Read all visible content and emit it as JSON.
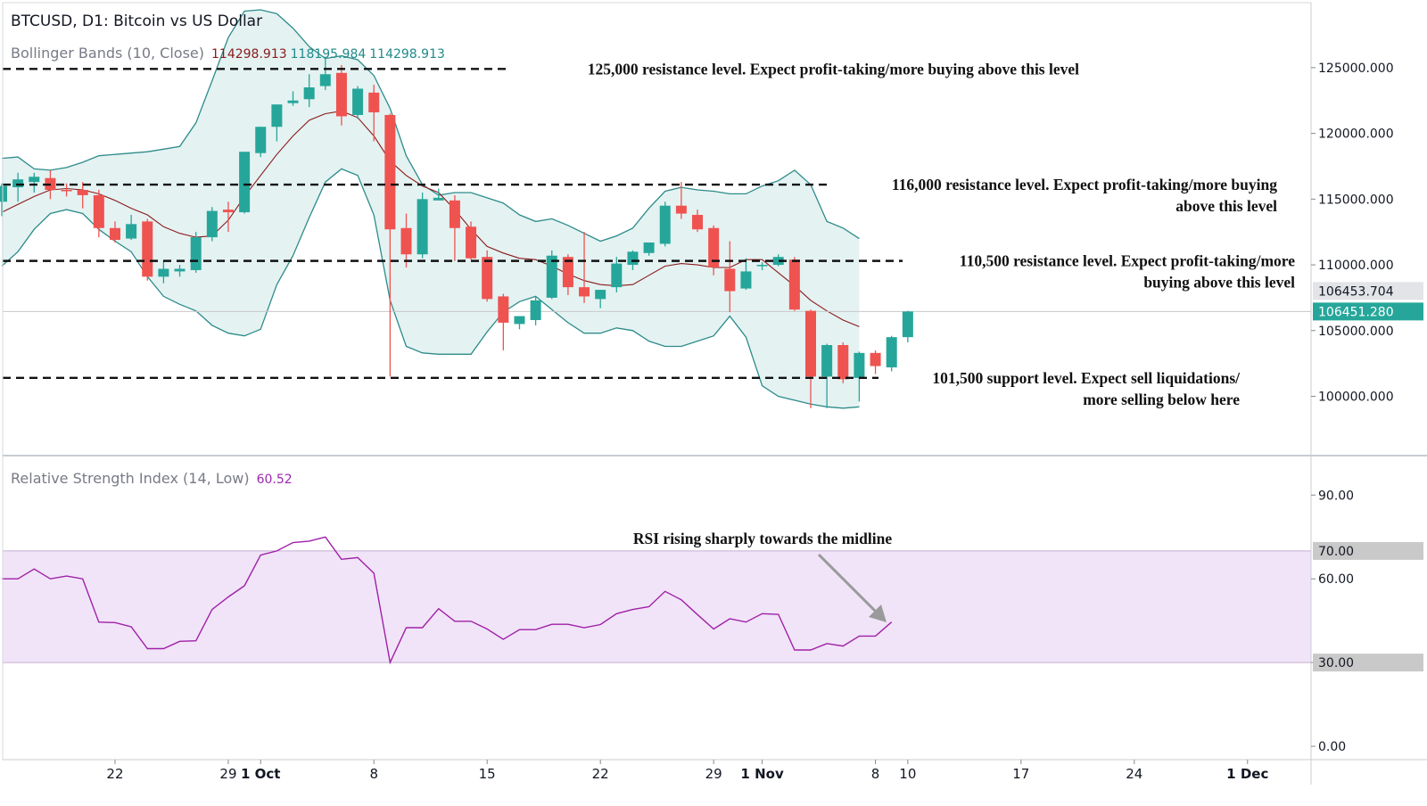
{
  "header": {
    "title": "BTCUSD, D1: Bitcoin vs US Dollar",
    "bb_label": "Bollinger Bands (10, Close)",
    "bb_values": [
      "114298.913",
      "118195.984",
      "114298.913"
    ],
    "rsi_label": "Relative Strength Index (14, Low)",
    "rsi_value": "60.52"
  },
  "chart_data": [
    {
      "type": "candlestick",
      "symbol": "BTCUSD",
      "timeframe": "D1",
      "ylim": [
        95000,
        130000
      ],
      "y_ticks": [
        "100000.000",
        "105000.000",
        "110000.000",
        "115000.000",
        "120000.000",
        "125000.000"
      ],
      "price_labels": [
        {
          "value": 106453.704,
          "text": "106453.704",
          "style": "gray"
        },
        {
          "value": 106451.28,
          "text": "106451.280",
          "style": "teal"
        }
      ],
      "x_ticks": [
        {
          "day": 7,
          "label": "22"
        },
        {
          "day": 14,
          "label": "29"
        },
        {
          "day": 16,
          "label": "1 Oct",
          "bold": true
        },
        {
          "day": 23,
          "label": "8"
        },
        {
          "day": 30,
          "label": "15"
        },
        {
          "day": 37,
          "label": "22"
        },
        {
          "day": 44,
          "label": "29"
        },
        {
          "day": 47,
          "label": "1 Nov",
          "bold": true
        },
        {
          "day": 54,
          "label": "8"
        },
        {
          "day": 56,
          "label": "10"
        },
        {
          "day": 63,
          "label": "17"
        },
        {
          "day": 70,
          "label": "24"
        },
        {
          "day": 77,
          "label": "1 Dec",
          "bold": true
        }
      ],
      "x_range_days": [
        0,
        80.5
      ],
      "candles": [
        {
          "o": 114800,
          "h": 116200,
          "l": 113700,
          "c": 116000
        },
        {
          "o": 115900,
          "h": 117000,
          "l": 114800,
          "c": 116500
        },
        {
          "o": 116300,
          "h": 117000,
          "l": 115500,
          "c": 116700
        },
        {
          "o": 116600,
          "h": 117200,
          "l": 115000,
          "c": 115700
        },
        {
          "o": 115700,
          "h": 116200,
          "l": 115200,
          "c": 115600
        },
        {
          "o": 115700,
          "h": 116300,
          "l": 114300,
          "c": 115300
        },
        {
          "o": 115300,
          "h": 115700,
          "l": 112100,
          "c": 112800
        },
        {
          "o": 112800,
          "h": 113300,
          "l": 111700,
          "c": 111900
        },
        {
          "o": 112000,
          "h": 113800,
          "l": 111900,
          "c": 113100
        },
        {
          "o": 113300,
          "h": 113500,
          "l": 108800,
          "c": 109100
        },
        {
          "o": 109100,
          "h": 110300,
          "l": 108600,
          "c": 109700
        },
        {
          "o": 109500,
          "h": 110000,
          "l": 109100,
          "c": 109700
        },
        {
          "o": 109600,
          "h": 112500,
          "l": 109400,
          "c": 112100
        },
        {
          "o": 112100,
          "h": 114400,
          "l": 111800,
          "c": 114100
        },
        {
          "o": 114200,
          "h": 114800,
          "l": 112500,
          "c": 114000
        },
        {
          "o": 114000,
          "h": 118600,
          "l": 113900,
          "c": 118600
        },
        {
          "o": 118500,
          "h": 120500,
          "l": 118200,
          "c": 120500
        },
        {
          "o": 120500,
          "h": 122200,
          "l": 119400,
          "c": 122200
        },
        {
          "o": 122300,
          "h": 123200,
          "l": 122100,
          "c": 122500
        },
        {
          "o": 122600,
          "h": 124500,
          "l": 122000,
          "c": 123500
        },
        {
          "o": 123600,
          "h": 125800,
          "l": 123300,
          "c": 124500
        },
        {
          "o": 124600,
          "h": 125200,
          "l": 120600,
          "c": 121300
        },
        {
          "o": 121400,
          "h": 123600,
          "l": 121100,
          "c": 123400
        },
        {
          "o": 123100,
          "h": 123700,
          "l": 119400,
          "c": 121600
        },
        {
          "o": 121400,
          "h": 121500,
          "l": 101500,
          "c": 112700
        },
        {
          "o": 112800,
          "h": 113900,
          "l": 109800,
          "c": 110800
        },
        {
          "o": 110800,
          "h": 115500,
          "l": 110500,
          "c": 115000
        },
        {
          "o": 114900,
          "h": 115800,
          "l": 114900,
          "c": 115100
        },
        {
          "o": 114900,
          "h": 115300,
          "l": 110300,
          "c": 112800
        },
        {
          "o": 112900,
          "h": 113300,
          "l": 110400,
          "c": 110500
        },
        {
          "o": 110600,
          "h": 111100,
          "l": 107200,
          "c": 107400
        },
        {
          "o": 107600,
          "h": 107800,
          "l": 103500,
          "c": 105600
        },
        {
          "o": 105500,
          "h": 106000,
          "l": 105100,
          "c": 106100
        },
        {
          "o": 105800,
          "h": 107600,
          "l": 105400,
          "c": 107300
        },
        {
          "o": 107500,
          "h": 111100,
          "l": 107400,
          "c": 110700
        },
        {
          "o": 110600,
          "h": 110800,
          "l": 107700,
          "c": 108300
        },
        {
          "o": 108300,
          "h": 112500,
          "l": 107100,
          "c": 107600
        },
        {
          "o": 107400,
          "h": 108100,
          "l": 106700,
          "c": 108100
        },
        {
          "o": 108300,
          "h": 110600,
          "l": 107900,
          "c": 110100
        },
        {
          "o": 110000,
          "h": 111100,
          "l": 109600,
          "c": 111000
        },
        {
          "o": 110900,
          "h": 111700,
          "l": 110700,
          "c": 111700
        },
        {
          "o": 111600,
          "h": 114800,
          "l": 111400,
          "c": 114500
        },
        {
          "o": 114500,
          "h": 116300,
          "l": 113500,
          "c": 113900
        },
        {
          "o": 113800,
          "h": 114200,
          "l": 112500,
          "c": 112700
        },
        {
          "o": 112800,
          "h": 113000,
          "l": 109200,
          "c": 109800
        },
        {
          "o": 109700,
          "h": 111800,
          "l": 106400,
          "c": 108000
        },
        {
          "o": 108200,
          "h": 110500,
          "l": 108100,
          "c": 109500
        },
        {
          "o": 109900,
          "h": 110200,
          "l": 109600,
          "c": 110000
        },
        {
          "o": 110000,
          "h": 110800,
          "l": 109900,
          "c": 110600
        },
        {
          "o": 110400,
          "h": 110600,
          "l": 106500,
          "c": 106600
        },
        {
          "o": 106500,
          "h": 106600,
          "l": 99100,
          "c": 101500
        },
        {
          "o": 101500,
          "h": 104000,
          "l": 99100,
          "c": 103900
        },
        {
          "o": 103900,
          "h": 104100,
          "l": 101000,
          "c": 101300
        },
        {
          "o": 101400,
          "h": 103400,
          "l": 99600,
          "c": 103300
        },
        {
          "o": 103300,
          "h": 103500,
          "l": 101700,
          "c": 102300
        },
        {
          "o": 102200,
          "h": 104600,
          "l": 101900,
          "c": 104500
        },
        {
          "o": 104500,
          "h": 106500,
          "l": 104100,
          "c": 106451
        }
      ],
      "bb_upper": [
        118100,
        118200,
        117300,
        117200,
        117400,
        117800,
        118300,
        118400,
        118500,
        118600,
        118800,
        119000,
        120800,
        124000,
        127300,
        129300,
        129400,
        129100,
        128000,
        126600,
        125700,
        125900,
        125600,
        124400,
        121900,
        118300,
        116100,
        115300,
        115500,
        115500,
        115100,
        114700,
        113800,
        113300,
        113500,
        113000,
        112400,
        111800,
        112200,
        112800,
        114300,
        115600,
        115900,
        115700,
        115600,
        115400,
        115400,
        116000,
        116400,
        117200,
        116100,
        113300,
        112800,
        112000
      ],
      "bb_middle": [
        114000,
        114600,
        115200,
        115700,
        115800,
        115700,
        115400,
        114900,
        114300,
        113800,
        112900,
        112400,
        112100,
        112200,
        113400,
        115200,
        116800,
        118400,
        119800,
        121000,
        121500,
        121700,
        121200,
        119800,
        117900,
        116800,
        116000,
        115500,
        114200,
        112700,
        111400,
        110900,
        110500,
        110400,
        109900,
        109300,
        108800,
        108500,
        108400,
        108500,
        109200,
        109900,
        110100,
        110000,
        109800,
        109800,
        110400,
        110400,
        109400,
        108400,
        107300,
        106500,
        105800,
        105300
      ],
      "bb_lower": [
        109900,
        111000,
        112700,
        113900,
        114200,
        113900,
        112700,
        111800,
        111000,
        109100,
        107600,
        107000,
        106500,
        105400,
        104800,
        104600,
        105100,
        108500,
        110700,
        113600,
        116300,
        117300,
        116800,
        113800,
        107300,
        103800,
        103300,
        103200,
        103200,
        103200,
        104900,
        106400,
        107200,
        107600,
        106600,
        105600,
        104800,
        104800,
        105200,
        105000,
        104200,
        103800,
        103800,
        104200,
        104600,
        106100,
        104500,
        100800,
        100000,
        99700,
        99400,
        99200,
        99100,
        99200
      ],
      "levels": [
        {
          "price": 124900,
          "label_lines": [
            "125,000 resistance level. Expect profit-taking/more buying above this level"
          ]
        },
        {
          "price": 116100,
          "label_lines": [
            "116,000 resistance level. Expect profit-taking/more buying",
            "above this level"
          ]
        },
        {
          "price": 110300,
          "label_lines": [
            "110,500 resistance level. Expect profit-taking/more",
            "buying above this level"
          ]
        },
        {
          "price": 101400,
          "label_lines": [
            "101,500 support level. Expect sell liquidations/",
            "more selling below here"
          ]
        }
      ]
    },
    {
      "type": "line",
      "name": "Relative Strength Index (14, Low)",
      "ylim": [
        0,
        100
      ],
      "y_ticks": [
        "0.00",
        "30.00",
        "60.00",
        "90.00"
      ],
      "band": [
        30,
        70
      ],
      "band_labels": [
        "70.00",
        "30.00"
      ],
      "x_range_days": [
        0,
        80.5
      ],
      "values": [
        60,
        60,
        63.5,
        60,
        61,
        60,
        44.5,
        44.3,
        42.8,
        35,
        35,
        37.6,
        37.8,
        49,
        53.5,
        57.5,
        68.5,
        70,
        73,
        73.5,
        75,
        67,
        67.6,
        62,
        30,
        42.5,
        42.5,
        49.3,
        44.8,
        44.8,
        42,
        38.3,
        41.8,
        41.8,
        43.7,
        43.7,
        42.5,
        43.6,
        47.5,
        49,
        50,
        55.5,
        52.5,
        47.2,
        42,
        45.7,
        44.5,
        47.5,
        47.3,
        34.5,
        34.5,
        36.8,
        35.9,
        39.5,
        39.5,
        44.5
      ],
      "annotation": "RSI rising sharply towards the midline"
    }
  ]
}
